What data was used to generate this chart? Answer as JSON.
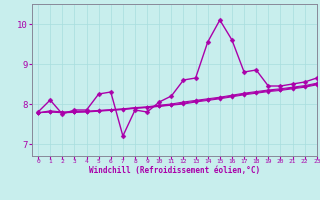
{
  "background_color": "#c8eeed",
  "line_color": "#aa00aa",
  "marker": "D",
  "marker_size": 2.5,
  "xlim": [
    -0.5,
    23
  ],
  "ylim": [
    6.7,
    10.5
  ],
  "xticks": [
    0,
    1,
    2,
    3,
    4,
    5,
    6,
    7,
    8,
    9,
    10,
    11,
    12,
    13,
    14,
    15,
    16,
    17,
    18,
    19,
    20,
    21,
    22,
    23
  ],
  "yticks": [
    7,
    8,
    9,
    10
  ],
  "xlabel": "Windchill (Refroidissement éolien,°C)",
  "grid_color": "#a8dede",
  "axis_color": "#888899",
  "tick_label_color": "#aa00aa",
  "xlabel_color": "#aa00aa",
  "series": [
    [
      7.8,
      8.1,
      7.75,
      7.85,
      7.85,
      8.25,
      8.3,
      7.2,
      7.85,
      7.8,
      8.05,
      8.2,
      8.6,
      8.65,
      9.55,
      10.1,
      9.6,
      8.8,
      8.85,
      8.45,
      8.45,
      8.5,
      8.55,
      8.65
    ],
    [
      7.78,
      7.83,
      7.8,
      7.81,
      7.82,
      7.84,
      7.86,
      7.88,
      7.91,
      7.93,
      7.97,
      8.0,
      8.05,
      8.09,
      8.13,
      8.17,
      8.22,
      8.27,
      8.31,
      8.35,
      8.38,
      8.42,
      8.46,
      8.52
    ],
    [
      7.78,
      7.81,
      7.79,
      7.8,
      7.81,
      7.83,
      7.85,
      7.87,
      7.9,
      7.92,
      7.95,
      7.98,
      8.02,
      8.07,
      8.11,
      8.15,
      8.2,
      8.25,
      8.29,
      8.33,
      8.36,
      8.4,
      8.44,
      8.5
    ],
    [
      7.78,
      7.8,
      7.78,
      7.79,
      7.8,
      7.82,
      7.84,
      7.86,
      7.89,
      7.91,
      7.94,
      7.97,
      8.0,
      8.05,
      8.09,
      8.13,
      8.18,
      8.23,
      8.27,
      8.31,
      8.34,
      8.38,
      8.42,
      8.48
    ]
  ]
}
